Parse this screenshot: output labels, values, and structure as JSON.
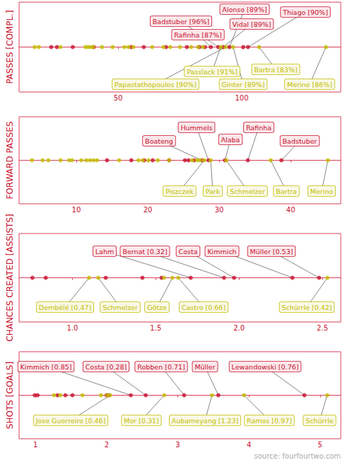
{
  "chart_data": [
    {
      "type": "scatter",
      "title": "PASSES [COMPL.]",
      "xlim": [
        10,
        140
      ],
      "xticks": [
        50,
        100
      ],
      "tick_labels": "x",
      "grid": false,
      "series": [
        {
          "color": "#c8102e",
          "x": [
            23,
            25.3,
            31.7,
            40.2,
            55.3,
            60.4,
            69.4,
            77.8,
            82.9,
            85.1,
            100.6
          ],
          "annotations": [
            {
              "x": 90.5,
              "label": "Badstuber [96%]"
            },
            {
              "x": 95,
              "label": "Alonso [89%]"
            },
            {
              "x": 87.5,
              "label": "Rafinha [87%]"
            },
            {
              "x": 92.5,
              "label": "Vidal [89%]"
            },
            {
              "x": 102.5,
              "label": "Thiago [90%]"
            }
          ]
        },
        {
          "color": "#c2bd00",
          "x": [
            16.3,
            18,
            26.7,
            36.8,
            37.9,
            39,
            39.9,
            43.5,
            47.8,
            52.5,
            54.2,
            56.2,
            63.8,
            68.3,
            71.1,
            75,
            79.5,
            82.3,
            84.3
          ],
          "annotations": [
            {
              "x": 91.5,
              "label": "Passlack [91%]"
            },
            {
              "x": 93.5,
              "label": "Papastathopoulos [90%]"
            },
            {
              "x": 96.5,
              "label": "Ginter [89%]"
            },
            {
              "x": 107,
              "label": "Bartra [83%]"
            },
            {
              "x": 134,
              "label": "Merino [86%]"
            }
          ]
        }
      ]
    },
    {
      "type": "scatter",
      "title": "FORWARD PASSES",
      "xlim": [
        2,
        47
      ],
      "xticks": [
        10,
        20,
        30,
        40
      ],
      "tick_labels": "x",
      "grid": false,
      "series": [
        {
          "color": "#c8102e",
          "x": [
            14.3,
            17.7,
            19.5,
            20.7,
            23,
            25.2,
            25.7,
            26.5
          ],
          "annotations": [
            {
              "x": 27.6,
              "label": "Boateng"
            },
            {
              "x": 28.5,
              "label": "Hummels"
            },
            {
              "x": 30.8,
              "label": "Alaba"
            },
            {
              "x": 34,
              "label": "Rafinha"
            },
            {
              "x": 38.7,
              "label": "Badstuber"
            }
          ]
        },
        {
          "color": "#c2bd00",
          "x": [
            3.8,
            5.3,
            6.1,
            7.8,
            9,
            9.4,
            10.7,
            11.4,
            11.9,
            12.4,
            12.9,
            16,
            18.7,
            19.3,
            20.1,
            21.4,
            23,
            26.2,
            26.9,
            27.3
          ],
          "annotations": [
            {
              "x": 27.9,
              "label": "Piszczek"
            },
            {
              "x": 28.8,
              "label": "Park"
            },
            {
              "x": 31,
              "label": "Schmelzer"
            },
            {
              "x": 37.2,
              "label": "Bartra"
            },
            {
              "x": 45.2,
              "label": "Merino"
            }
          ]
        }
      ]
    },
    {
      "type": "scatter",
      "title": "CHANCES CREATED [ASSISTS]",
      "xlim": [
        0.68,
        2.61
      ],
      "xticks": [
        {
          "value": 1,
          "label": "1.0"
        },
        1.5,
        {
          "value": 2,
          "label": "2.0"
        },
        2.5
      ],
      "tick_labels": "x",
      "grid": false,
      "series": [
        {
          "color": "#c8102e",
          "x": [
            0.76,
            0.84,
            1.2,
            1.42,
            1.535
          ],
          "annotations": [
            {
              "x": 1.71,
              "label": "Lahm"
            },
            {
              "x": 1.91,
              "label": "Bernat [0.32]"
            },
            {
              "x": 1.97,
              "label": "Costa"
            },
            {
              "x": 2.32,
              "label": "Kimmich"
            },
            {
              "x": 2.48,
              "label": "Müller [0.53]"
            }
          ]
        },
        {
          "color": "#c2bd00",
          "x": [
            1.55
          ],
          "annotations": [
            {
              "x": 1.1,
              "label": "Dembélé [0.47]"
            },
            {
              "x": 1.155,
              "label": "Schmelzer"
            },
            {
              "x": 1.6,
              "label": "Götze"
            },
            {
              "x": 1.635,
              "label": "Castro [0.66]"
            },
            {
              "x": 2.53,
              "label": "Schürrle [0.42]"
            }
          ]
        }
      ]
    },
    {
      "type": "scatter",
      "title": "SHOTS [GOALS]",
      "xlim": [
        0.77,
        5.29
      ],
      "xticks": [
        1,
        2,
        3,
        4,
        5
      ],
      "tick_labels": "x",
      "grid": false,
      "caption": "source: fourfourtwo.com",
      "series": [
        {
          "color": "#c8102e",
          "x": [
            0.99,
            1.03,
            1.31,
            1.42,
            1.52,
            2.0,
            2.03
          ],
          "annotations": [
            {
              "x": 2.34,
              "label": "Kimmich [0.85]"
            },
            {
              "x": 2.55,
              "label": "Costa [0.28]"
            },
            {
              "x": 3.09,
              "label": "Robben [0.71]"
            },
            {
              "x": 3.57,
              "label": "Müller"
            },
            {
              "x": 4.78,
              "label": "Lewandowski [0.76]"
            }
          ]
        },
        {
          "color": "#c2bd00",
          "x": [
            1.26,
            1.35,
            1.66,
            1.92,
            2.01
          ],
          "annotations": [
            {
              "x": 2.05,
              "label": "Jose Guerreiro [0.46]"
            },
            {
              "x": 2.81,
              "label": "Mor [0.31]"
            },
            {
              "x": 3.48,
              "label": "Aubameyang [1.23]"
            },
            {
              "x": 3.93,
              "label": "Ramos [0.97]"
            },
            {
              "x": 5.1,
              "label": "Schürrle"
            }
          ]
        }
      ]
    }
  ]
}
